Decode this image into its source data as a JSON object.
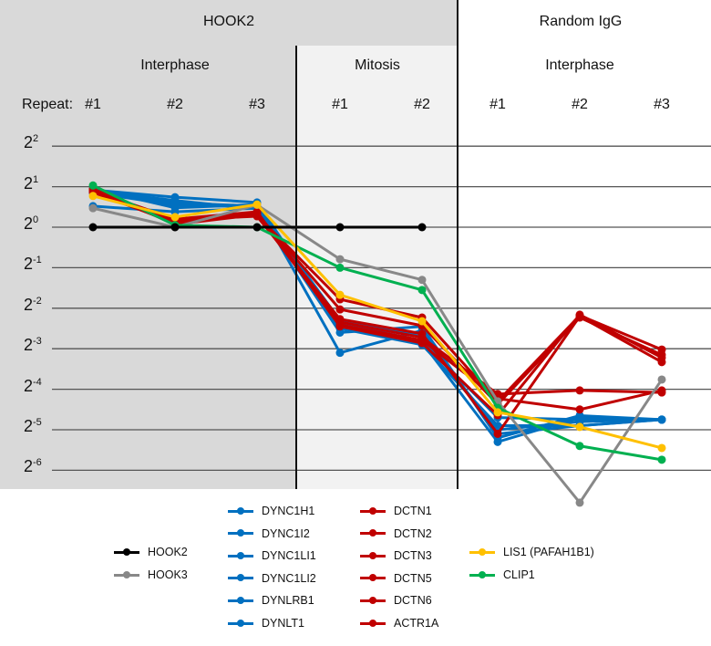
{
  "header": {
    "group1": "HOOK2",
    "group2": "Random IgG",
    "phase1": "Interphase",
    "phase2": "Mitosis",
    "phase3": "Interphase",
    "repeat_label": "Repeat:"
  },
  "chart_data": {
    "type": "line",
    "categories": [
      "#1",
      "#2",
      "#3",
      "#1",
      "#2",
      "#1",
      "#2",
      "#3"
    ],
    "y_scale": "log2",
    "y_tick_labels": [
      {
        "base": "2",
        "exp": "2",
        "value": 2
      },
      {
        "base": "2",
        "exp": "1",
        "value": 1
      },
      {
        "base": "2",
        "exp": "0",
        "value": 0
      },
      {
        "base": "2",
        "exp": "-1",
        "value": -1
      },
      {
        "base": "2",
        "exp": "-2",
        "value": -2
      },
      {
        "base": "2",
        "exp": "-3",
        "value": -3
      },
      {
        "base": "2",
        "exp": "-4",
        "value": -4
      },
      {
        "base": "2",
        "exp": "-5",
        "value": -5
      },
      {
        "base": "2",
        "exp": "-6",
        "value": -6
      }
    ],
    "ylim_log2": [
      -7.2,
      2
    ],
    "grid": true,
    "legend_position": "bottom",
    "series": [
      {
        "name": "HOOK2",
        "color": "#000000",
        "log2_values": [
          0,
          0,
          0,
          0,
          0,
          null,
          null,
          null
        ]
      },
      {
        "name": "HOOK3",
        "color": "#888888",
        "log2_values": [
          0.47,
          0,
          0.55,
          -0.79,
          -1.3,
          -4.3,
          -6.8,
          -3.76
        ]
      },
      {
        "name": "DYNC1H1",
        "color": "#0070c0",
        "log2_values": [
          0.92,
          0.74,
          0.61,
          -2.45,
          -2.84,
          -5.3,
          -4.7,
          -4.75
        ]
      },
      {
        "name": "DYNC1I2",
        "color": "#0070c0",
        "log2_values": [
          0.52,
          0.38,
          0.47,
          -2.6,
          -2.45,
          -5.2,
          -4.65,
          -4.75
        ]
      },
      {
        "name": "DYNC1LI1",
        "color": "#0070c0",
        "log2_values": [
          0.95,
          0.48,
          0.56,
          -3.1,
          -2.55,
          -5.1,
          -4.9,
          -4.75
        ]
      },
      {
        "name": "DYNC1LI2",
        "color": "#0070c0",
        "log2_values": [
          0.85,
          0.55,
          0.5,
          -2.3,
          -2.7,
          -5.0,
          -4.8,
          -4.75
        ]
      },
      {
        "name": "DYNLRB1",
        "color": "#0070c0",
        "log2_values": [
          0.88,
          0.6,
          0.52,
          -2.5,
          -2.9,
          -4.9,
          -4.9,
          -4.75
        ]
      },
      {
        "name": "DYNLT1",
        "color": "#0070c0",
        "log2_values": [
          0.9,
          0.66,
          0.45,
          -2.38,
          -2.8,
          -4.7,
          -4.75,
          -4.75
        ]
      },
      {
        "name": "DCTN1",
        "color": "#c00000",
        "log2_values": [
          0.92,
          0.14,
          0.29,
          -1.78,
          -2.23,
          -4.3,
          -2.18,
          -3.02
        ]
      },
      {
        "name": "DCTN2",
        "color": "#c00000",
        "log2_values": [
          0.88,
          0.1,
          0.33,
          -2.03,
          -2.43,
          -4.37,
          -2.23,
          -3.15
        ]
      },
      {
        "name": "DCTN3",
        "color": "#c00000",
        "log2_values": [
          0.9,
          0.18,
          0.27,
          -2.27,
          -2.63,
          -5.1,
          -2.2,
          -3.33
        ]
      },
      {
        "name": "DCTN5",
        "color": "#c00000",
        "log2_values": [
          0.86,
          0.11,
          0.36,
          -2.34,
          -2.72,
          -4.12,
          -4.03,
          -4.08
        ]
      },
      {
        "name": "DCTN6",
        "color": "#c00000",
        "log2_values": [
          0.95,
          0.07,
          0.31,
          -2.41,
          -2.79,
          -4.23,
          -4.5,
          -4.03
        ]
      },
      {
        "name": "ACTR1A",
        "color": "#c00000",
        "log2_values": [
          0.9,
          0.2,
          0.38,
          -2.45,
          -2.86,
          -4.64,
          -2.16,
          -3.22
        ]
      },
      {
        "name": "LIS1 (PAFAH1B1)",
        "color": "#ffc000",
        "log2_values": [
          0.77,
          0.25,
          0.56,
          -1.67,
          -2.32,
          -4.57,
          -4.93,
          -5.45
        ]
      },
      {
        "name": "CLIP1",
        "color": "#00b050",
        "log2_values": [
          1.03,
          0.05,
          0,
          -1.0,
          -1.55,
          -4.46,
          -5.4,
          -5.74
        ]
      }
    ]
  }
}
